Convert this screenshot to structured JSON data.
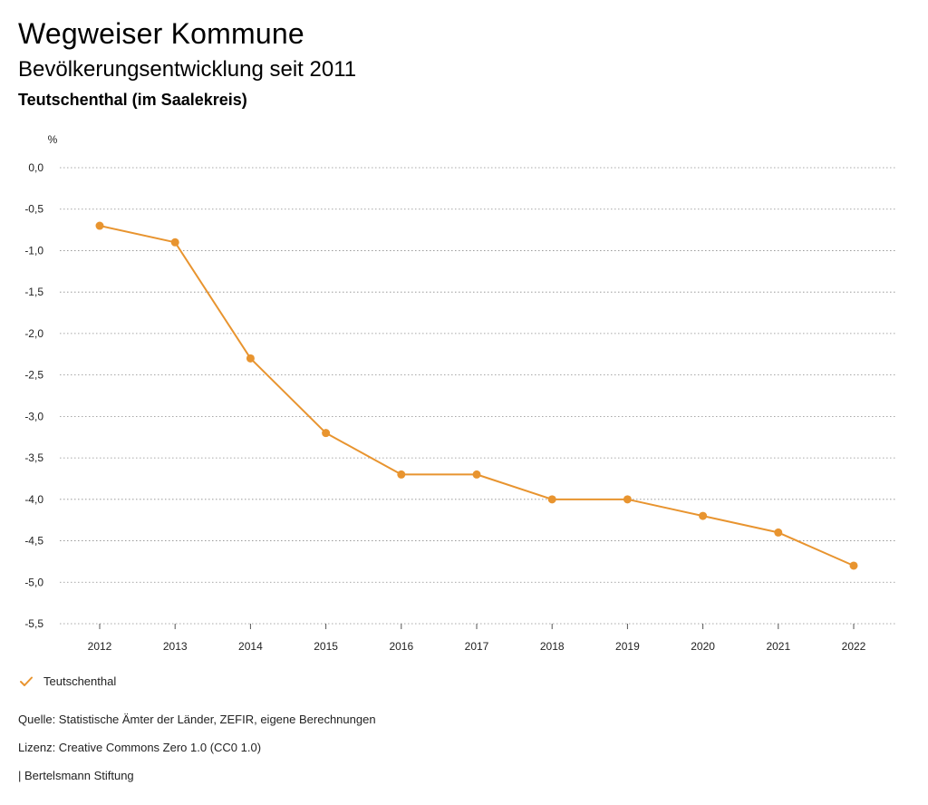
{
  "header": {
    "title": "Wegweiser Kommune",
    "subtitle": "Bevölkerungsentwicklung seit 2011",
    "region": "Teutschenthal (im Saalekreis)"
  },
  "chart_data": {
    "type": "line",
    "title": "Bevölkerungsentwicklung seit 2011",
    "subtitle": "Teutschenthal (im Saalekreis)",
    "ylabel": "%",
    "xlabel": "",
    "categories": [
      "2012",
      "2013",
      "2014",
      "2015",
      "2016",
      "2017",
      "2018",
      "2019",
      "2020",
      "2021",
      "2022"
    ],
    "series": [
      {
        "name": "Teutschenthal",
        "values": [
          -0.7,
          -0.9,
          -2.3,
          -3.2,
          -3.7,
          -3.7,
          -4.0,
          -4.0,
          -4.2,
          -4.4,
          -4.8
        ],
        "color": "#e8942f"
      }
    ],
    "ylim": [
      -5.5,
      0.0
    ],
    "yticks": [
      {
        "value": 0.0,
        "label": "0,0"
      },
      {
        "value": -0.5,
        "label": "-0,5"
      },
      {
        "value": -1.0,
        "label": "-1,0"
      },
      {
        "value": -1.5,
        "label": "-1,5"
      },
      {
        "value": -2.0,
        "label": "-2,0"
      },
      {
        "value": -2.5,
        "label": "-2,5"
      },
      {
        "value": -3.0,
        "label": "-3,0"
      },
      {
        "value": -3.5,
        "label": "-3,5"
      },
      {
        "value": -4.0,
        "label": "-4,0"
      },
      {
        "value": -4.5,
        "label": "-4,5"
      },
      {
        "value": -5.0,
        "label": "-5,0"
      },
      {
        "value": -5.5,
        "label": "-5,5"
      }
    ],
    "grid": true,
    "grid_style": "dotted",
    "legend_position": "bottom-left"
  },
  "legend": {
    "label": "Teutschenthal",
    "icon": "checkmark-icon"
  },
  "footer": {
    "source": "Quelle: Statistische Ämter der Länder, ZEFIR, eigene Berechnungen",
    "license": "Lizenz: Creative Commons Zero 1.0 (CC0 1.0)",
    "publisher": "| Bertelsmann Stiftung"
  }
}
